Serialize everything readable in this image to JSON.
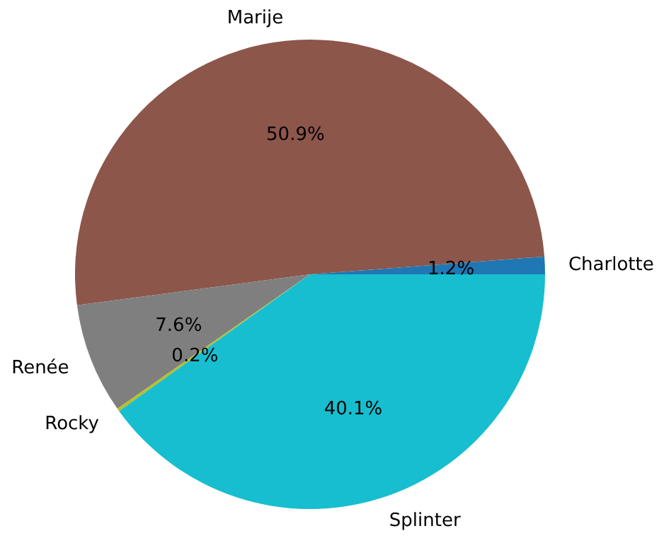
{
  "chart_data": {
    "type": "pie",
    "categories": [
      "Charlotte",
      "Marije",
      "Renée",
      "Rocky",
      "Splinter"
    ],
    "values": [
      1.2,
      50.9,
      7.6,
      0.2,
      40.1
    ],
    "colors": [
      "#1f77b4",
      "#8c564b",
      "#7f7f7f",
      "#bcbd22",
      "#17becf"
    ],
    "value_labels": [
      "1.2%",
      "50.9%",
      "7.6%",
      "0.2%",
      "40.1%"
    ]
  }
}
